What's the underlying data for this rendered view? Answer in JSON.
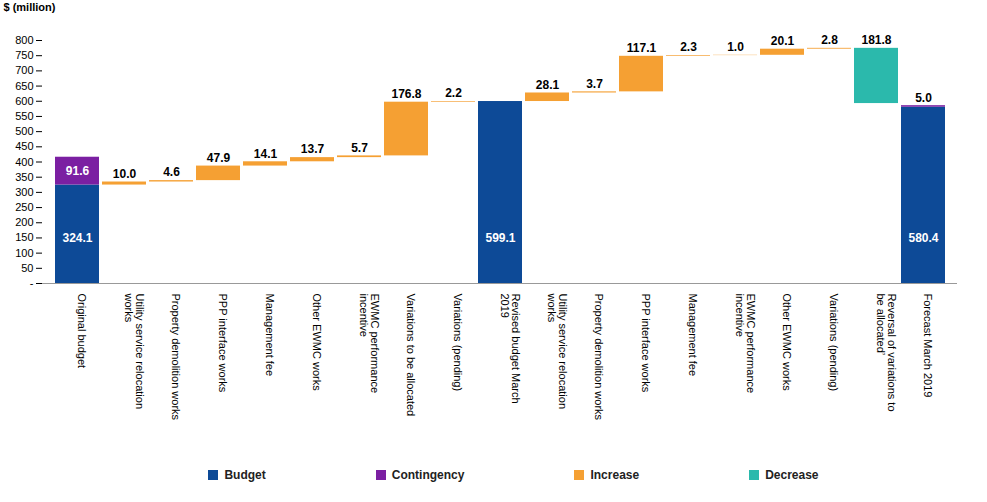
{
  "chart_data": {
    "type": "waterfall",
    "y_label": "$ (million)",
    "categories": [
      "Original budget",
      "Utility service relocation works",
      "Property demolition works",
      "PPP interface works",
      "Management fee",
      "Other EWMC works",
      "EWMC performance incentive",
      "Variations to be allocated",
      "Variations (pending)",
      "Revised budget March 2019",
      "Utility service relocation works",
      "Property demolition works",
      "PPP interface works",
      "Management fee",
      "EWMC performance incentive",
      "Other EWMC works",
      "Variations (pending)",
      "Reversal of variations to be allocated’",
      "Forecast March 2019"
    ],
    "series": [
      {
        "name": "Budget",
        "color": "#0d4a97",
        "values": [
          324.1,
          null,
          null,
          null,
          null,
          null,
          null,
          null,
          null,
          599.1,
          null,
          null,
          null,
          null,
          null,
          null,
          null,
          null,
          580.4
        ],
        "value_labels": [
          "324.1",
          null,
          null,
          null,
          null,
          null,
          null,
          null,
          null,
          "599.1",
          null,
          null,
          null,
          null,
          null,
          null,
          null,
          null,
          "580.4"
        ]
      },
      {
        "name": "Contingency",
        "color": "#7b1fa2",
        "values": [
          91.6,
          null,
          null,
          null,
          null,
          null,
          null,
          null,
          null,
          null,
          null,
          null,
          null,
          null,
          null,
          null,
          null,
          null,
          5.0
        ],
        "value_labels": [
          "91.6",
          null,
          null,
          null,
          null,
          null,
          null,
          null,
          null,
          null,
          null,
          null,
          null,
          null,
          null,
          null,
          null,
          null,
          "5.0"
        ]
      },
      {
        "name": "Increase",
        "color": "#f5a033",
        "values": [
          null,
          10.0,
          4.6,
          47.9,
          14.1,
          13.7,
          5.7,
          176.8,
          2.2,
          null,
          28.1,
          3.7,
          117.1,
          2.3,
          1.0,
          20.1,
          2.8,
          null,
          null
        ],
        "value_labels": [
          null,
          "10.0",
          "4.6",
          "47.9",
          "14.1",
          "13.7",
          "5.7",
          "176.8",
          "2.2",
          null,
          "28.1",
          "3.7",
          "117.1",
          "2.3",
          "1.0",
          "20.1",
          "2.8",
          null,
          null
        ]
      },
      {
        "name": "Decrease",
        "color": "#2bb9ac",
        "values": [
          null,
          null,
          null,
          null,
          null,
          null,
          null,
          null,
          null,
          null,
          null,
          null,
          null,
          null,
          null,
          null,
          null,
          181.8,
          null
        ],
        "value_labels": [
          null,
          null,
          null,
          null,
          null,
          null,
          null,
          null,
          null,
          null,
          null,
          null,
          null,
          null,
          null,
          null,
          null,
          "181.8",
          null
        ]
      }
    ],
    "ylim": [
      0,
      800
    ],
    "yticks": [
      {
        "value": 0,
        "label": "-"
      },
      50,
      100,
      150,
      200,
      250,
      300,
      350,
      400,
      450,
      500,
      550,
      600,
      650,
      700,
      750,
      800
    ],
    "grid": false,
    "legend": "bottom",
    "data_labels": true
  }
}
